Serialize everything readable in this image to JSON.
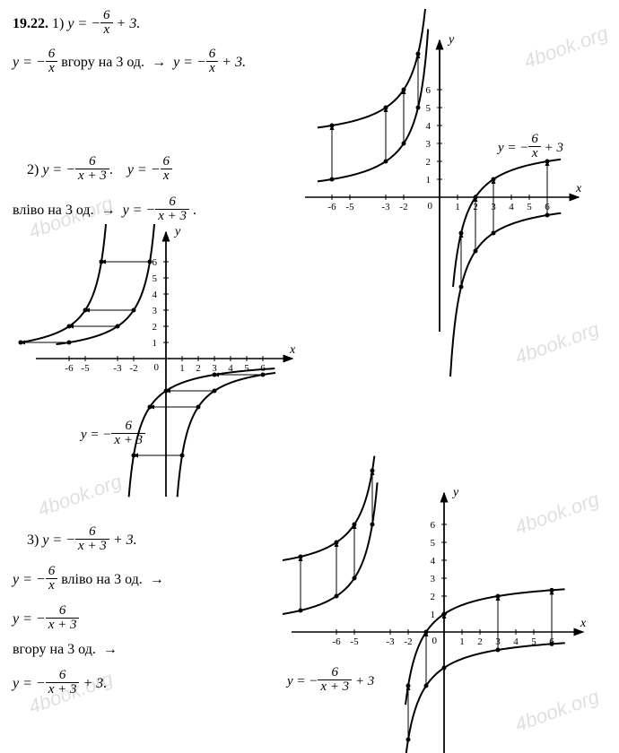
{
  "watermark": "4book.org",
  "problemNumber": "19.22.",
  "part1": {
    "label": "1)",
    "eq1_lhs": "y = −",
    "eq1_num": "6",
    "eq1_den": "x",
    "eq1_rhs": "+ 3.",
    "step_lhs": "y = −",
    "step_num": "6",
    "step_den": "x",
    "step_mid": " вгору на 3 од. ",
    "step_arrow": "→",
    "step_rhs_lhs": " y = −",
    "step_rhs_num": "6",
    "step_rhs_den": "x",
    "step_rhs_end": "+ 3."
  },
  "part2": {
    "label": "2)",
    "eq1_lhs": "y = −",
    "eq1_num": "6",
    "eq1_den": "x + 3",
    "eq1_dot": ".",
    "eq2_lhs": "y = −",
    "eq2_num": "6",
    "eq2_den": "x",
    "step_pre": "вліво на 3 од. ",
    "step_arrow": "→",
    "step_rhs_lhs": " y = −",
    "step_rhs_num": "6",
    "step_rhs_den": "x + 3",
    "step_rhs_dot": "."
  },
  "part3": {
    "label": "3)",
    "eq1_lhs": "y = −",
    "eq1_num": "6",
    "eq1_den": "x + 3",
    "eq1_rhs": "+ 3.",
    "step1_lhs": "y = −",
    "step1_num": "6",
    "step1_den": "x",
    "step1_mid": " вліво на 3 од. ",
    "step1_arrow": "→",
    "step2_lhs": "y = −",
    "step2_num": "6",
    "step2_den": "x + 3",
    "step3_pre": "вгору на 3 од. ",
    "step3_arrow": "→",
    "step4_lhs": "y = −",
    "step4_num": "6",
    "step4_den": "x + 3",
    "step4_rhs": "+ 3."
  },
  "chart1": {
    "x_ticks": [
      -6,
      -5,
      -3,
      -2,
      1,
      2,
      3,
      4,
      5,
      6
    ],
    "y_ticks": [
      1,
      2,
      3,
      4,
      5,
      6
    ],
    "x_label": "x",
    "y_label": "y",
    "zero": "0",
    "eq_lhs": "y = −",
    "eq_num": "6",
    "eq_den": "x",
    "eq_rhs": "+ 3",
    "scale": 20,
    "colors": {
      "bg": "#ffffff",
      "axis": "#000000",
      "curve": "#000000"
    }
  },
  "chart2": {
    "x_ticks": [
      -6,
      -5,
      -3,
      -2,
      1,
      2,
      3,
      4,
      5,
      6
    ],
    "y_ticks": [
      1,
      2,
      3,
      4,
      5,
      6
    ],
    "x_label": "x",
    "y_label": "y",
    "zero": "0",
    "eq_lhs": "y = −",
    "eq_num": "6",
    "eq_den": "x + 3",
    "scale": 18,
    "colors": {
      "bg": "#ffffff",
      "axis": "#000000",
      "curve": "#000000"
    }
  },
  "chart3": {
    "x_ticks": [
      -6,
      -5,
      -3,
      -2,
      1,
      2,
      3,
      4,
      5,
      6
    ],
    "y_ticks": [
      1,
      2,
      3,
      4,
      5,
      6
    ],
    "x_label": "x",
    "y_label": "y",
    "zero": "0",
    "eq_lhs": "y = −",
    "eq_num": "6",
    "eq_den": "x + 3",
    "eq_rhs": "+ 3",
    "scale": 20,
    "colors": {
      "bg": "#ffffff",
      "axis": "#000000",
      "curve": "#000000"
    }
  }
}
